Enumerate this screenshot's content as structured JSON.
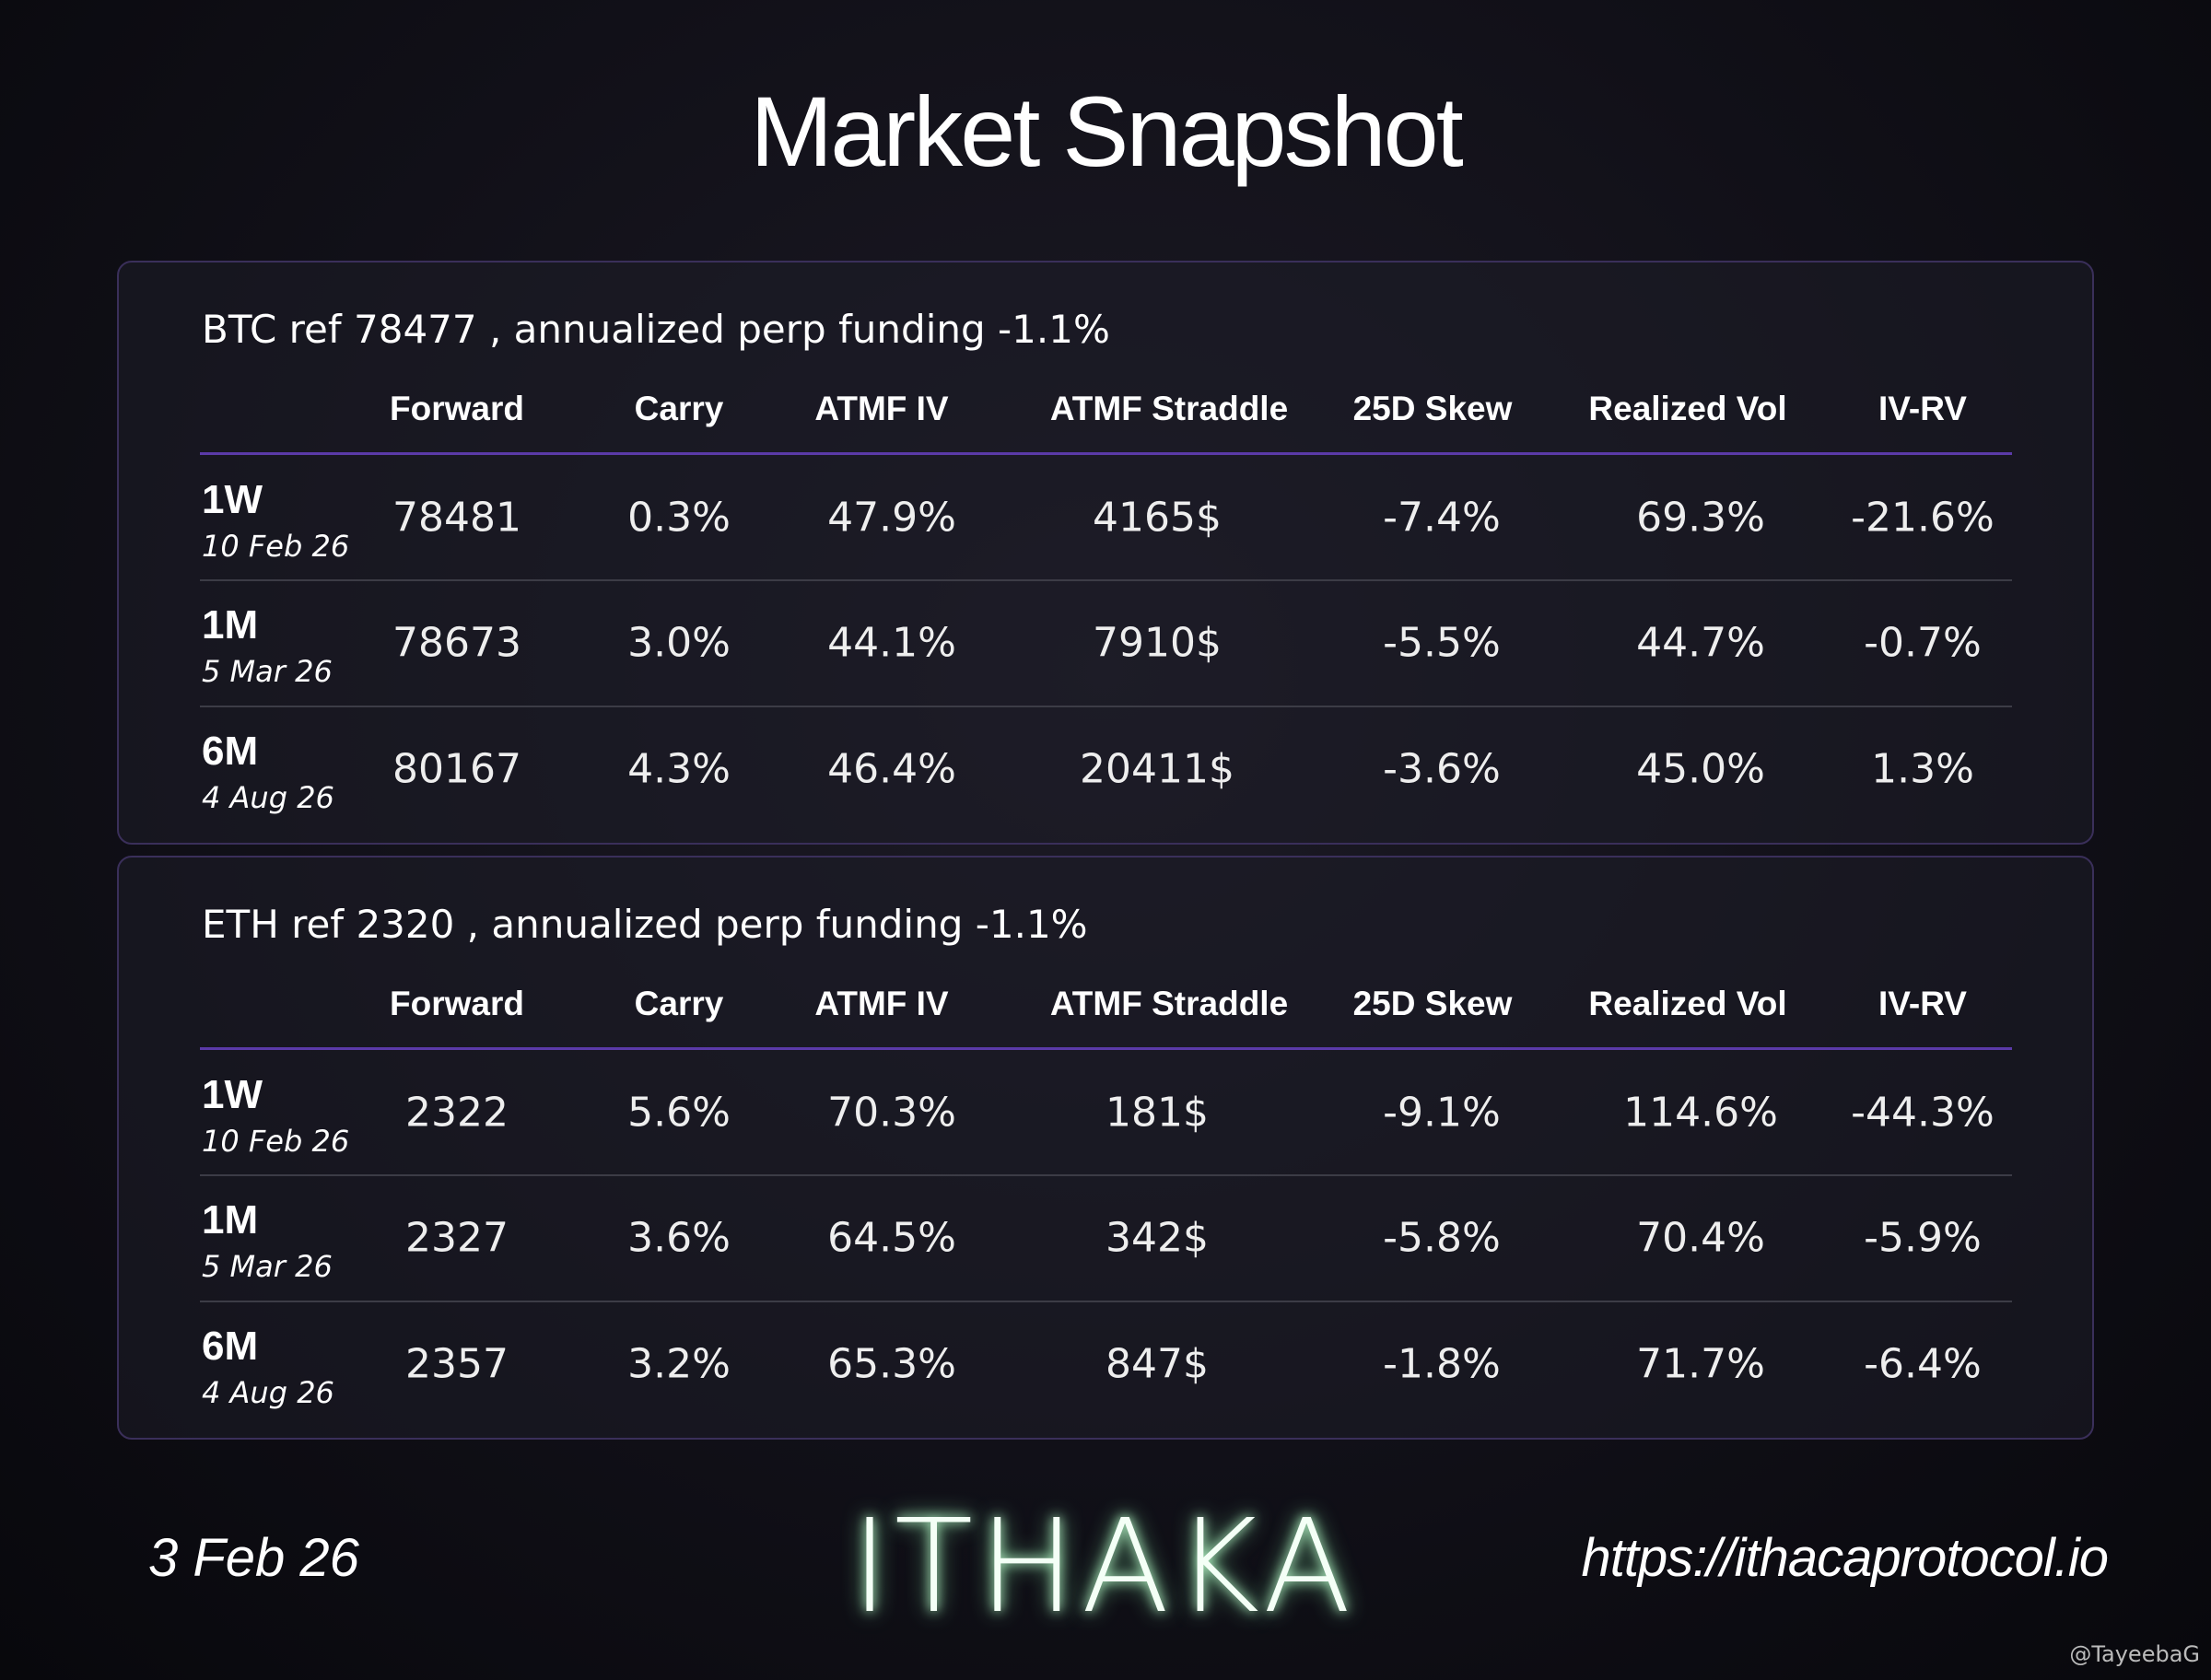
{
  "title": "Market Snapshot",
  "tables": [
    {
      "caption": "BTC ref 78477 , annualized perp funding -1.1%",
      "headers": [
        "Forward",
        "Carry",
        "ATMF IV",
        "ATMF Straddle",
        "25D Skew",
        "Realized Vol",
        "IV-RV"
      ],
      "rows": [
        {
          "tenor": "1W",
          "date": "10 Feb 26",
          "cells": [
            "78481",
            "0.3%",
            "47.9%",
            "4165$",
            "-7.4%",
            "69.3%",
            "-21.6%"
          ]
        },
        {
          "tenor": "1M",
          "date": "5 Mar 26",
          "cells": [
            "78673",
            "3.0%",
            "44.1%",
            "7910$",
            "-5.5%",
            "44.7%",
            "-0.7%"
          ]
        },
        {
          "tenor": "6M",
          "date": "4 Aug 26",
          "cells": [
            "80167",
            "4.3%",
            "46.4%",
            "20411$",
            "-3.6%",
            "45.0%",
            "1.3%"
          ]
        }
      ]
    },
    {
      "caption": "ETH ref 2320 , annualized perp funding -1.1%",
      "headers": [
        "Forward",
        "Carry",
        "ATMF IV",
        "ATMF Straddle",
        "25D Skew",
        "Realized Vol",
        "IV-RV"
      ],
      "rows": [
        {
          "tenor": "1W",
          "date": "10 Feb 26",
          "cells": [
            "2322",
            "5.6%",
            "70.3%",
            "181$",
            "-9.1%",
            "114.6%",
            "-44.3%"
          ]
        },
        {
          "tenor": "1M",
          "date": "5 Mar 26",
          "cells": [
            "2327",
            "3.6%",
            "64.5%",
            "342$",
            "-5.8%",
            "70.4%",
            "-5.9%"
          ]
        },
        {
          "tenor": "6M",
          "date": "4 Aug 26",
          "cells": [
            "2357",
            "3.2%",
            "65.3%",
            "847$",
            "-1.8%",
            "71.7%",
            "-6.4%"
          ]
        }
      ]
    }
  ],
  "footer": {
    "date": "3 Feb 26",
    "logo": "ITHAKA",
    "url": "https://ithacaprotocol.io",
    "watermark": "@TayeebaG"
  }
}
